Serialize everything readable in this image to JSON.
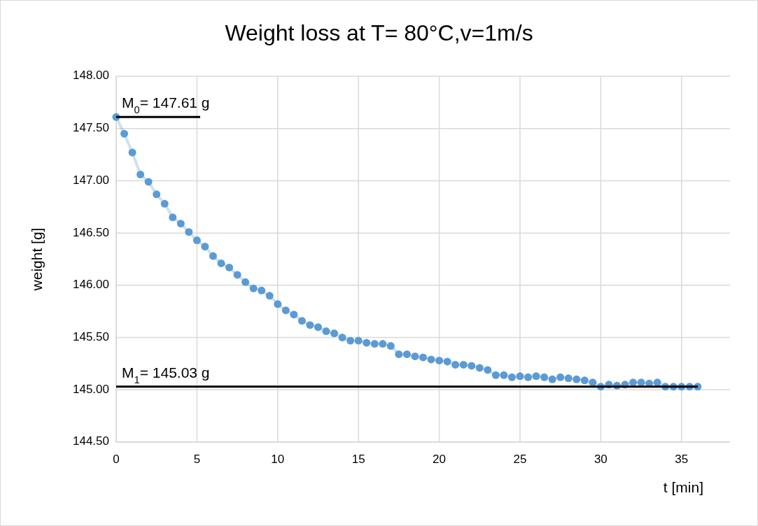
{
  "chart_data": {
    "type": "line",
    "title": "Weight loss at T= 80°C,v=1m/s",
    "xlabel": "t [min]",
    "ylabel": "weight [g]",
    "x": [
      0,
      0.5,
      1,
      1.5,
      2,
      2.5,
      3,
      3.5,
      4,
      4.5,
      5,
      5.5,
      6,
      6.5,
      7,
      7.5,
      8,
      8.5,
      9,
      9.5,
      10,
      10.5,
      11,
      11.5,
      12,
      12.5,
      13,
      13.5,
      14,
      14.5,
      15,
      15.5,
      16,
      16.5,
      17,
      17.5,
      18,
      18.5,
      19,
      19.5,
      20,
      20.5,
      21,
      21.5,
      22,
      22.5,
      23,
      23.5,
      24,
      24.5,
      25,
      25.5,
      26,
      26.5,
      27,
      27.5,
      28,
      28.5,
      29,
      29.5,
      30,
      30.5,
      31,
      31.5,
      32,
      32.5,
      33,
      33.5,
      34,
      34.5,
      35,
      35.5,
      36
    ],
    "series": [
      {
        "color": "#5b9bd5",
        "values": [
          147.61,
          147.45,
          147.27,
          147.06,
          146.99,
          146.87,
          146.78,
          146.65,
          146.59,
          146.51,
          146.43,
          146.37,
          146.28,
          146.21,
          146.17,
          146.1,
          146.03,
          145.97,
          145.95,
          145.9,
          145.82,
          145.76,
          145.72,
          145.66,
          145.62,
          145.6,
          145.56,
          145.54,
          145.5,
          145.47,
          145.47,
          145.45,
          145.44,
          145.44,
          145.42,
          145.34,
          145.34,
          145.32,
          145.31,
          145.29,
          145.28,
          145.27,
          145.24,
          145.24,
          145.23,
          145.21,
          145.19,
          145.14,
          145.14,
          145.12,
          145.13,
          145.12,
          145.13,
          145.12,
          145.1,
          145.12,
          145.11,
          145.1,
          145.09,
          145.07,
          145.03,
          145.05,
          145.04,
          145.05,
          145.07,
          145.07,
          145.06,
          145.07,
          145.03,
          145.03,
          145.03,
          145.03,
          145.03
        ]
      }
    ],
    "ref_lines": [
      {
        "axis": "y",
        "value": 147.61,
        "label": "M$_{0}$= 147.61 g",
        "color": "#000000"
      },
      {
        "axis": "y",
        "value": 145.03,
        "label": "M$_{1}$= 145.03 g",
        "color": "#000000"
      }
    ],
    "xlim": [
      0,
      38
    ],
    "xticks": [
      0,
      5,
      10,
      15,
      20,
      25,
      30,
      35
    ],
    "ylim": [
      144.5,
      148
    ],
    "yticks": [
      {
        "value": 144.5,
        "label": "144.50"
      },
      {
        "value": 145,
        "label": "145.00"
      },
      {
        "value": 145.5,
        "label": "145.50"
      },
      {
        "value": 146,
        "label": "146.00"
      },
      {
        "value": 146.5,
        "label": "146.50"
      },
      {
        "value": 147,
        "label": "147.00"
      },
      {
        "value": 147.5,
        "label": "147.50"
      },
      {
        "value": 148,
        "label": "148.00"
      }
    ],
    "grid": true,
    "marker": "circle"
  }
}
